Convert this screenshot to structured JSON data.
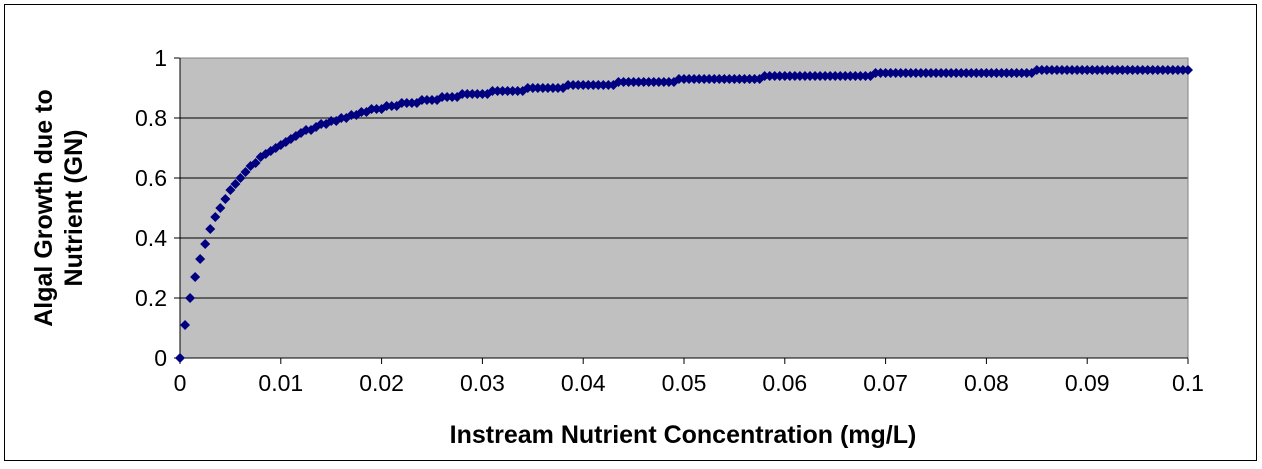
{
  "chart_data": {
    "type": "scatter",
    "x_label": "Instream Nutrient Concentration (mg/L)",
    "y_label": [
      "Algal Growth due to",
      "Nutrient (GN)"
    ],
    "color": "#000080",
    "plot_background": "#c0c0c0",
    "grid": true,
    "xlim": [
      0,
      0.1
    ],
    "ylim": [
      0,
      1
    ],
    "xticks": [
      0,
      0.01,
      0.02,
      0.03,
      0.04,
      0.05,
      0.06,
      0.07,
      0.08,
      0.09,
      0.1
    ],
    "yticks": [
      0,
      0.2,
      0.4,
      0.6,
      0.8,
      1
    ],
    "x": [
      0,
      0.0005,
      0.001,
      0.0015,
      0.002,
      0.0025,
      0.003,
      0.0035,
      0.004,
      0.0045,
      0.005,
      0.0055,
      0.006,
      0.0065,
      0.007,
      0.0075,
      0.008,
      0.0085,
      0.009,
      0.0095,
      0.01,
      0.0105,
      0.011,
      0.0115,
      0.012,
      0.0125,
      0.013,
      0.0135,
      0.014,
      0.0145,
      0.015,
      0.0155,
      0.016,
      0.0165,
      0.017,
      0.0175,
      0.018,
      0.0185,
      0.019,
      0.0195,
      0.02,
      0.0205,
      0.021,
      0.0215,
      0.022,
      0.0225,
      0.023,
      0.0235,
      0.024,
      0.0245,
      0.025,
      0.0255,
      0.026,
      0.0265,
      0.027,
      0.0275,
      0.028,
      0.0285,
      0.029,
      0.0295,
      0.03,
      0.0305,
      0.031,
      0.0315,
      0.032,
      0.0325,
      0.033,
      0.0335,
      0.034,
      0.0345,
      0.035,
      0.0355,
      0.036,
      0.0365,
      0.037,
      0.0375,
      0.038,
      0.0385,
      0.039,
      0.0395,
      0.04,
      0.0405,
      0.041,
      0.0415,
      0.042,
      0.0425,
      0.043,
      0.0435,
      0.044,
      0.0445,
      0.045,
      0.0455,
      0.046,
      0.0465,
      0.047,
      0.0475,
      0.048,
      0.0485,
      0.049,
      0.0495,
      0.05,
      0.0505,
      0.051,
      0.0515,
      0.052,
      0.0525,
      0.053,
      0.0535,
      0.054,
      0.0545,
      0.055,
      0.0555,
      0.056,
      0.0565,
      0.057,
      0.0575,
      0.058,
      0.0585,
      0.059,
      0.0595,
      0.06,
      0.0605,
      0.061,
      0.0615,
      0.062,
      0.0625,
      0.063,
      0.0635,
      0.064,
      0.0645,
      0.065,
      0.0655,
      0.066,
      0.0665,
      0.067,
      0.0675,
      0.068,
      0.0685,
      0.069,
      0.0695,
      0.07,
      0.0705,
      0.071,
      0.0715,
      0.072,
      0.0725,
      0.073,
      0.0735,
      0.074,
      0.0745,
      0.075,
      0.0755,
      0.076,
      0.0765,
      0.077,
      0.0775,
      0.078,
      0.0785,
      0.079,
      0.0795,
      0.08,
      0.0805,
      0.081,
      0.0815,
      0.082,
      0.0825,
      0.083,
      0.0835,
      0.084,
      0.0845,
      0.085,
      0.0855,
      0.086,
      0.0865,
      0.087,
      0.0875,
      0.088,
      0.0885,
      0.089,
      0.0895,
      0.09,
      0.0905,
      0.091,
      0.0915,
      0.092,
      0.0925,
      0.093,
      0.0935,
      0.094,
      0.0945,
      0.095,
      0.0955,
      0.096,
      0.0965,
      0.097,
      0.0975,
      0.098,
      0.0985,
      0.099,
      0.0995,
      0.1
    ],
    "values": [
      0,
      0.11,
      0.2,
      0.27,
      0.33,
      0.38,
      0.43,
      0.47,
      0.5,
      0.53,
      0.56,
      0.58,
      0.6,
      0.62,
      0.64,
      0.65,
      0.67,
      0.68,
      0.69,
      0.7,
      0.71,
      0.72,
      0.73,
      0.74,
      0.75,
      0.76,
      0.76,
      0.77,
      0.78,
      0.78,
      0.79,
      0.79,
      0.8,
      0.8,
      0.81,
      0.81,
      0.82,
      0.82,
      0.83,
      0.83,
      0.83,
      0.84,
      0.84,
      0.84,
      0.85,
      0.85,
      0.85,
      0.85,
      0.86,
      0.86,
      0.86,
      0.86,
      0.87,
      0.87,
      0.87,
      0.87,
      0.88,
      0.88,
      0.88,
      0.88,
      0.88,
      0.88,
      0.89,
      0.89,
      0.89,
      0.89,
      0.89,
      0.89,
      0.89,
      0.9,
      0.9,
      0.9,
      0.9,
      0.9,
      0.9,
      0.9,
      0.9,
      0.91,
      0.91,
      0.91,
      0.91,
      0.91,
      0.91,
      0.91,
      0.91,
      0.91,
      0.91,
      0.92,
      0.92,
      0.92,
      0.92,
      0.92,
      0.92,
      0.92,
      0.92,
      0.92,
      0.92,
      0.92,
      0.92,
      0.93,
      0.93,
      0.93,
      0.93,
      0.93,
      0.93,
      0.93,
      0.93,
      0.93,
      0.93,
      0.93,
      0.93,
      0.93,
      0.93,
      0.93,
      0.93,
      0.93,
      0.94,
      0.94,
      0.94,
      0.94,
      0.94,
      0.94,
      0.94,
      0.94,
      0.94,
      0.94,
      0.94,
      0.94,
      0.94,
      0.94,
      0.94,
      0.94,
      0.94,
      0.94,
      0.94,
      0.94,
      0.94,
      0.94,
      0.95,
      0.95,
      0.95,
      0.95,
      0.95,
      0.95,
      0.95,
      0.95,
      0.95,
      0.95,
      0.95,
      0.95,
      0.95,
      0.95,
      0.95,
      0.95,
      0.95,
      0.95,
      0.95,
      0.95,
      0.95,
      0.95,
      0.95,
      0.95,
      0.95,
      0.95,
      0.95,
      0.95,
      0.95,
      0.95,
      0.95,
      0.95,
      0.96,
      0.96,
      0.96,
      0.96,
      0.96,
      0.96,
      0.96,
      0.96,
      0.96,
      0.96,
      0.96,
      0.96,
      0.96,
      0.96,
      0.96,
      0.96,
      0.96,
      0.96,
      0.96,
      0.96,
      0.96,
      0.96,
      0.96,
      0.96,
      0.96,
      0.96,
      0.96,
      0.96,
      0.96,
      0.96,
      0.96
    ]
  }
}
